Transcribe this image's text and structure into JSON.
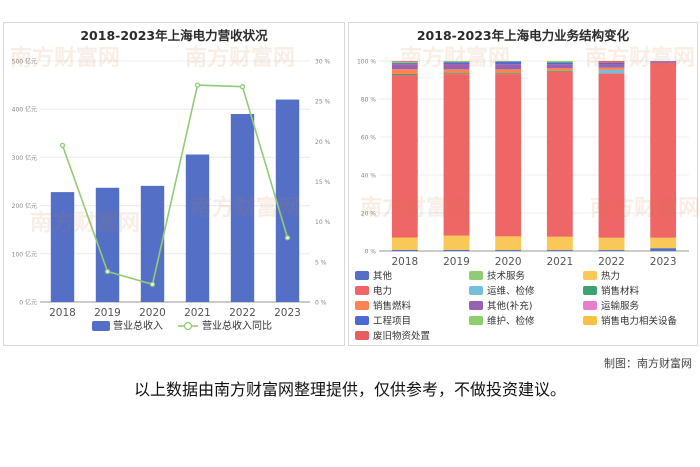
{
  "credit": "制图：南方财富网",
  "footer_note": "以上数据由南方财富网整理提供，仅供参考，不做投资建议。",
  "watermark": "南方财富网",
  "chart_data": [
    {
      "type": "bar",
      "title": "2018-2023年上海电力营收状况",
      "categories": [
        "2018",
        "2019",
        "2020",
        "2021",
        "2022",
        "2023"
      ],
      "y_ticks": [
        "0 亿元",
        "100 亿元",
        "200 亿元",
        "300 亿元",
        "400 亿元",
        "500 亿元"
      ],
      "y2_ticks": [
        "0 %",
        "5 %",
        "10 %",
        "15 %",
        "20 %",
        "25 %",
        "30 %"
      ],
      "ylim": [
        0,
        500
      ],
      "y2lim": [
        0,
        30
      ],
      "series": [
        {
          "name": "营业总收入",
          "type": "bar",
          "axis": "left",
          "color": "#5470c6",
          "values": [
            228,
            237,
            241,
            306,
            390,
            420
          ]
        },
        {
          "name": "营业总收入同比",
          "type": "line",
          "axis": "right",
          "color": "#91cc75",
          "values": [
            19.5,
            3.8,
            2.2,
            27.0,
            26.8,
            8.0
          ]
        }
      ]
    },
    {
      "type": "bar",
      "title": "2018-2023年上海电力业务结构变化",
      "categories": [
        "2018",
        "2019",
        "2020",
        "2021",
        "2022",
        "2023"
      ],
      "y_ticks": [
        "0 %",
        "20 %",
        "40 %",
        "60 %",
        "80 %",
        "100 %"
      ],
      "ylim": [
        0,
        100
      ],
      "stacked": true,
      "series": [
        {
          "name": "其他",
          "color": "#5470c6",
          "values": [
            0.6,
            0.6,
            0.5,
            0.5,
            0.5,
            1.5
          ]
        },
        {
          "name": "技术服务",
          "color": "#91cc75",
          "values": [
            0,
            0,
            0,
            0,
            0,
            0
          ]
        },
        {
          "name": "热力",
          "color": "#fac858",
          "values": [
            6.5,
            7.5,
            7.2,
            7.0,
            6.5,
            5.5
          ]
        },
        {
          "name": "电力",
          "color": "#ee6666",
          "values": [
            85.5,
            85.0,
            85.4,
            86.8,
            86.5,
            92.0
          ]
        },
        {
          "name": "运维、检修",
          "color": "#73c0de",
          "values": [
            0,
            0,
            0,
            0,
            1.8,
            0
          ]
        },
        {
          "name": "销售材料",
          "color": "#3ba272",
          "values": [
            0.6,
            0.5,
            0.5,
            0.5,
            0,
            0
          ]
        },
        {
          "name": "销售燃料",
          "color": "#fc8452",
          "values": [
            2.5,
            2.0,
            2.0,
            1.5,
            1.2,
            0
          ]
        },
        {
          "name": "其他(补充)",
          "color": "#9a60b4",
          "values": [
            2.6,
            2.8,
            2.7,
            2.0,
            1.5,
            0.5
          ]
        },
        {
          "name": "运输服务",
          "color": "#ea7ccc",
          "values": [
            0,
            0,
            0,
            0,
            0,
            0
          ]
        },
        {
          "name": "工程项目",
          "color": "#4c6ad4",
          "values": [
            0.6,
            1.0,
            1.4,
            0.9,
            1.0,
            0.3
          ]
        },
        {
          "name": "维护、检修",
          "color": "#8ccf6b",
          "values": [
            0.7,
            0.6,
            0.3,
            0.8,
            0,
            0
          ]
        },
        {
          "name": "销售电力相关设备",
          "color": "#f7c244",
          "values": [
            0,
            0,
            0,
            0,
            0,
            0
          ]
        },
        {
          "name": "废旧物资处置",
          "color": "#e85e5e",
          "values": [
            0.4,
            0,
            0,
            0,
            1.0,
            0.2
          ]
        }
      ]
    }
  ]
}
